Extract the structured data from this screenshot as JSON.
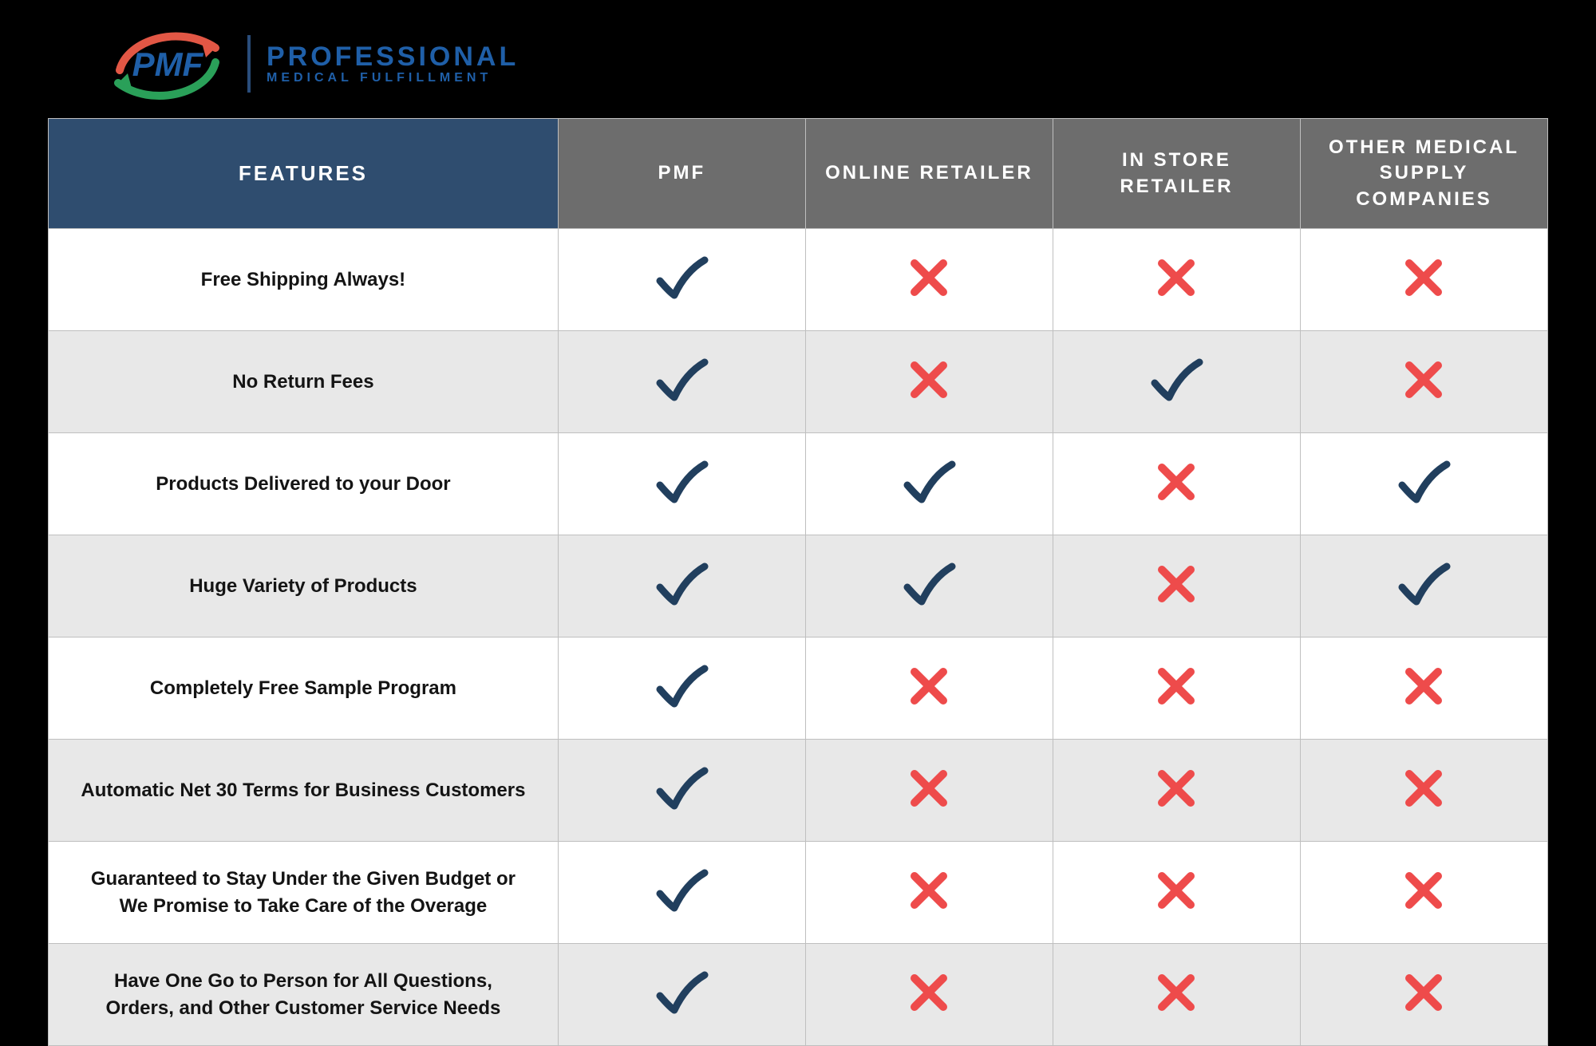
{
  "logo": {
    "abbr": "PMF",
    "title_line1": "PROFESSIONAL",
    "title_line2": "MEDICAL FULFILLMENT",
    "swoosh_red": "#e25745",
    "swoosh_green": "#2aa059",
    "text_blue": "#1f5fa8",
    "divider_color": "#2a4d7b"
  },
  "table": {
    "header_features_bg": "#2f4d6f",
    "header_col_bg": "#6d6d6d",
    "header_text_color": "#ffffff",
    "row_bg_white": "#ffffff",
    "row_bg_alt": "#e8e8e8",
    "border_color": "#bfbfbf",
    "check_color": "#213f5e",
    "cross_color": "#ee4b4b",
    "feature_text_color": "#141414",
    "header_fontsize": 24,
    "feature_fontsize": 24,
    "columns": [
      {
        "key": "features",
        "label": "FEATURES"
      },
      {
        "key": "pmf",
        "label": "PMF"
      },
      {
        "key": "online",
        "label": "ONLINE RETAILER"
      },
      {
        "key": "instore",
        "label": "IN STORE RETAILER"
      },
      {
        "key": "other",
        "label": "OTHER MEDICAL SUPPLY COMPANIES"
      }
    ],
    "rows": [
      {
        "feature": "Free Shipping Always!",
        "pmf": true,
        "online": false,
        "instore": false,
        "other": false
      },
      {
        "feature": "No Return Fees",
        "pmf": true,
        "online": false,
        "instore": true,
        "other": false
      },
      {
        "feature": "Products Delivered to your Door",
        "pmf": true,
        "online": true,
        "instore": false,
        "other": true
      },
      {
        "feature": "Huge Variety of Products",
        "pmf": true,
        "online": true,
        "instore": false,
        "other": true
      },
      {
        "feature": "Completely Free Sample Program",
        "pmf": true,
        "online": false,
        "instore": false,
        "other": false
      },
      {
        "feature": "Automatic Net 30 Terms for Business Customers",
        "pmf": true,
        "online": false,
        "instore": false,
        "other": false
      },
      {
        "feature": "Guaranteed to Stay Under the Given Budget or We Promise to Take Care of the Overage",
        "pmf": true,
        "online": false,
        "instore": false,
        "other": false
      },
      {
        "feature": "Have One Go to Person for All Questions, Orders, and Other Customer Service Needs",
        "pmf": true,
        "online": false,
        "instore": false,
        "other": false
      }
    ]
  }
}
